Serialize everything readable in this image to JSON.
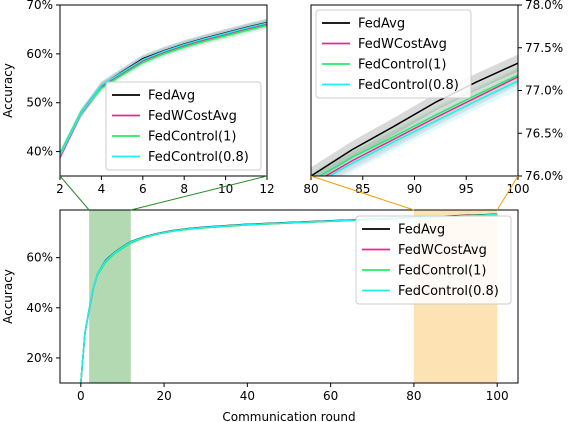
{
  "chart_data": [
    {
      "id": "top_left",
      "type": "line",
      "title": "",
      "xlabel": "",
      "ylabel": "Accuracy",
      "xlim": [
        2,
        12
      ],
      "ylim": [
        0.35,
        0.7
      ],
      "xticks": [
        2,
        4,
        6,
        8,
        10,
        12
      ],
      "xtick_labels": [
        "2",
        "4",
        "6",
        "8",
        "10",
        "12"
      ],
      "yticks": [
        0.4,
        0.5,
        0.6,
        0.7
      ],
      "ytick_labels": [
        "40%",
        "50%",
        "60%",
        "70%"
      ],
      "y_axis_side": "left",
      "legend": "lower-right",
      "grid": false,
      "series": [
        {
          "name": "FedAvg",
          "color": "#000000",
          "x": [
            2,
            3,
            4,
            5,
            6,
            7,
            8,
            9,
            10,
            11,
            12
          ],
          "y": [
            0.393,
            0.478,
            0.535,
            0.563,
            0.59,
            0.606,
            0.62,
            0.632,
            0.643,
            0.654,
            0.664
          ],
          "band": 0.008
        },
        {
          "name": "FedWCostAvg",
          "color": "#e7298a",
          "x": [
            2,
            3,
            4,
            5,
            6,
            7,
            8,
            9,
            10,
            11,
            12
          ],
          "y": [
            0.388,
            0.476,
            0.533,
            0.56,
            0.586,
            0.603,
            0.617,
            0.629,
            0.64,
            0.651,
            0.661
          ],
          "band": 0.008
        },
        {
          "name": "FedControl(1)",
          "color": "#22ee66",
          "x": [
            2,
            3,
            4,
            5,
            6,
            7,
            8,
            9,
            10,
            11,
            12
          ],
          "y": [
            0.396,
            0.48,
            0.53,
            0.557,
            0.582,
            0.6,
            0.614,
            0.626,
            0.637,
            0.648,
            0.658
          ],
          "band": 0.008
        },
        {
          "name": "FedControl(0.8)",
          "color": "#22eeee",
          "x": [
            2,
            3,
            4,
            5,
            6,
            7,
            8,
            9,
            10,
            11,
            12
          ],
          "y": [
            0.392,
            0.477,
            0.536,
            0.562,
            0.588,
            0.605,
            0.619,
            0.631,
            0.642,
            0.653,
            0.663
          ],
          "band": 0.008
        }
      ]
    },
    {
      "id": "top_right",
      "type": "line",
      "title": "",
      "xlabel": "",
      "ylabel": "",
      "xlim": [
        80,
        100
      ],
      "ylim": [
        0.76,
        0.78
      ],
      "xticks": [
        80,
        85,
        90,
        95,
        100
      ],
      "xtick_labels": [
        "80",
        "85",
        "90",
        "95",
        "100"
      ],
      "yticks": [
        0.76,
        0.765,
        0.77,
        0.775,
        0.78
      ],
      "ytick_labels": [
        "76.0%",
        "76.5%",
        "77.0%",
        "77.5%",
        "78.0%"
      ],
      "y_axis_side": "right",
      "legend": "upper-left",
      "grid": false,
      "series": [
        {
          "name": "FedAvg",
          "color": "#000000",
          "x": [
            80,
            84,
            88,
            92,
            96,
            100
          ],
          "y": [
            0.76,
            0.7631,
            0.7658,
            0.7686,
            0.771,
            0.7732
          ],
          "band": 0.001
        },
        {
          "name": "FedWCostAvg",
          "color": "#e7298a",
          "x": [
            80,
            84,
            88,
            92,
            96,
            100
          ],
          "y": [
            0.759,
            0.7618,
            0.7643,
            0.7668,
            0.7692,
            0.7716
          ],
          "band": 0.001
        },
        {
          "name": "FedControl(1)",
          "color": "#22ee66",
          "x": [
            80,
            84,
            88,
            92,
            96,
            100
          ],
          "y": [
            0.7594,
            0.7622,
            0.7646,
            0.7671,
            0.7695,
            0.7718
          ],
          "band": 0.001
        },
        {
          "name": "FedControl(0.8)",
          "color": "#22eeee",
          "x": [
            80,
            84,
            88,
            92,
            96,
            100
          ],
          "y": [
            0.7588,
            0.7615,
            0.764,
            0.7664,
            0.7688,
            0.7711
          ],
          "band": 0.001
        }
      ]
    },
    {
      "id": "bottom",
      "type": "line",
      "title": "",
      "xlabel": "Communication round",
      "ylabel": "Accuracy",
      "xlim": [
        -5,
        105
      ],
      "ylim": [
        0.1,
        0.79
      ],
      "xticks": [
        0,
        20,
        40,
        60,
        80,
        100
      ],
      "xtick_labels": [
        "0",
        "20",
        "40",
        "60",
        "80",
        "100"
      ],
      "yticks": [
        0.2,
        0.4,
        0.6
      ],
      "ytick_labels": [
        "20%",
        "40%",
        "60%"
      ],
      "y_axis_side": "left",
      "legend": "upper-right",
      "grid": false,
      "highlights": [
        {
          "x_from": 2,
          "x_to": 12,
          "color": "#b3d9b3"
        },
        {
          "x_from": 80,
          "x_to": 100,
          "color": "#fde3b3"
        }
      ],
      "series": [
        {
          "name": "FedAvg",
          "color": "#000000",
          "x": [
            0,
            1,
            2,
            3,
            4,
            6,
            8,
            10,
            12,
            15,
            18,
            22,
            26,
            30,
            40,
            50,
            60,
            70,
            80,
            90,
            100
          ],
          "y": [
            0.1,
            0.3,
            0.393,
            0.478,
            0.535,
            0.59,
            0.62,
            0.643,
            0.664,
            0.682,
            0.695,
            0.708,
            0.716,
            0.722,
            0.733,
            0.74,
            0.747,
            0.753,
            0.76,
            0.767,
            0.773
          ]
        },
        {
          "name": "FedWCostAvg",
          "color": "#e7298a",
          "x": [
            0,
            1,
            2,
            3,
            4,
            6,
            8,
            10,
            12,
            15,
            18,
            22,
            26,
            30,
            40,
            50,
            60,
            70,
            80,
            90,
            100
          ],
          "y": [
            0.1,
            0.3,
            0.388,
            0.476,
            0.533,
            0.586,
            0.617,
            0.64,
            0.661,
            0.68,
            0.693,
            0.706,
            0.714,
            0.72,
            0.731,
            0.738,
            0.745,
            0.751,
            0.759,
            0.765,
            0.772
          ]
        },
        {
          "name": "FedControl(1)",
          "color": "#22ee66",
          "x": [
            0,
            1,
            2,
            3,
            4,
            6,
            8,
            10,
            12,
            15,
            18,
            22,
            26,
            30,
            40,
            50,
            60,
            70,
            80,
            90,
            100
          ],
          "y": [
            0.1,
            0.3,
            0.396,
            0.48,
            0.53,
            0.582,
            0.614,
            0.637,
            0.658,
            0.678,
            0.692,
            0.705,
            0.713,
            0.719,
            0.73,
            0.738,
            0.745,
            0.751,
            0.759,
            0.765,
            0.772
          ]
        },
        {
          "name": "FedControl(0.8)",
          "color": "#22eeee",
          "x": [
            0,
            1,
            2,
            3,
            4,
            6,
            8,
            10,
            12,
            15,
            18,
            22,
            26,
            30,
            40,
            50,
            60,
            70,
            80,
            90,
            100
          ],
          "y": [
            0.1,
            0.3,
            0.392,
            0.477,
            0.536,
            0.588,
            0.619,
            0.642,
            0.663,
            0.681,
            0.694,
            0.707,
            0.715,
            0.721,
            0.732,
            0.739,
            0.746,
            0.752,
            0.759,
            0.765,
            0.771
          ]
        }
      ]
    }
  ]
}
